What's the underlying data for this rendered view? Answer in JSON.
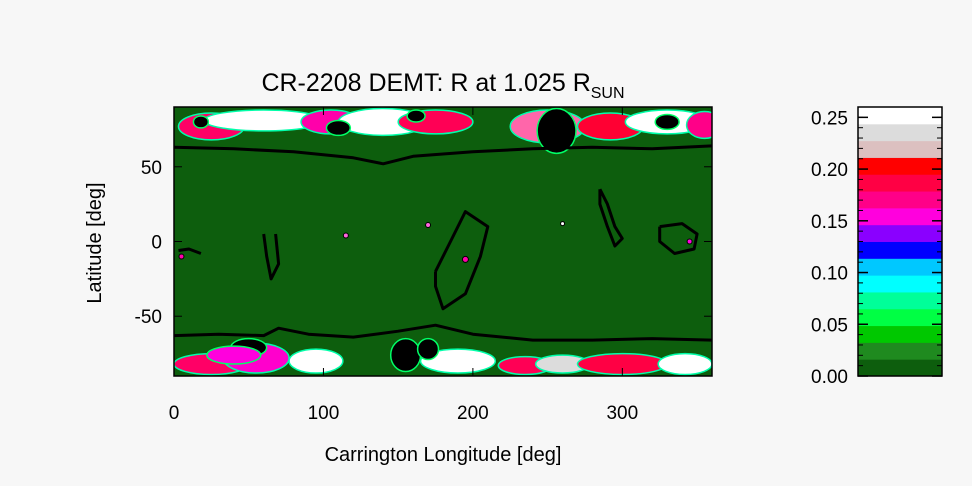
{
  "chart_data": {
    "type": "heatmap",
    "title": {
      "main": "CR-2208 DEMT: R at 1.025 R",
      "subscript": "SUN"
    },
    "xlabel": "Carrington Longitude [deg]",
    "ylabel": "Latitude [deg]",
    "xlim": [
      0,
      360
    ],
    "ylim": [
      -90,
      90
    ],
    "x_ticks": [
      0,
      100,
      200,
      300
    ],
    "y_ticks": [
      50,
      0,
      -50
    ],
    "x_tick_labels": [
      "0",
      "100",
      "200",
      "300"
    ],
    "y_tick_labels": [
      "50",
      "0",
      "-50"
    ],
    "background_value_color": "#0d5e0d",
    "boundary_color": "#000000",
    "colorbar": {
      "range": [
        0.0,
        0.26
      ],
      "ticks": [
        0.0,
        0.05,
        0.1,
        0.15,
        0.2,
        0.25
      ],
      "tick_labels": [
        "0.00",
        "0.05",
        "0.10",
        "0.15",
        "0.20",
        "0.25"
      ],
      "colors": [
        "#0d5e0d",
        "#1f8a1f",
        "#00c800",
        "#00ff44",
        "#00ff99",
        "#00ffff",
        "#00c8ff",
        "#0000ff",
        "#8a00ff",
        "#ff00dd",
        "#ff0088",
        "#ff0044",
        "#ff0000",
        "#dcc0c0",
        "#dcdcdc",
        "#ffffff"
      ]
    },
    "blobs": [
      {
        "lon": 25,
        "lat": 77,
        "rx": 22,
        "ry": 9,
        "fill": "#ff0066"
      },
      {
        "lon": 60,
        "lat": 81,
        "rx": 40,
        "ry": 7,
        "fill": "#ffffff"
      },
      {
        "lon": 105,
        "lat": 80,
        "rx": 20,
        "ry": 8,
        "fill": "#ff00aa"
      },
      {
        "lon": 140,
        "lat": 80,
        "rx": 30,
        "ry": 9,
        "fill": "#ffffff"
      },
      {
        "lon": 175,
        "lat": 80,
        "rx": 25,
        "ry": 8,
        "fill": "#ff0055"
      },
      {
        "lon": 250,
        "lat": 77,
        "rx": 25,
        "ry": 11,
        "fill": "#ff66aa"
      },
      {
        "lon": 292,
        "lat": 77,
        "rx": 22,
        "ry": 9,
        "fill": "#ff0033"
      },
      {
        "lon": 330,
        "lat": 80,
        "rx": 28,
        "ry": 8,
        "fill": "#ffffff"
      },
      {
        "lon": 355,
        "lat": 78,
        "rx": 12,
        "ry": 9,
        "fill": "#ff0088"
      },
      {
        "lon": 25,
        "lat": -82,
        "rx": 25,
        "ry": 7,
        "fill": "#ff0066"
      },
      {
        "lon": 55,
        "lat": -78,
        "rx": 22,
        "ry": 10,
        "fill": "#ff00cc"
      },
      {
        "lon": 95,
        "lat": -80,
        "rx": 18,
        "ry": 8,
        "fill": "#ffffff"
      },
      {
        "lon": 190,
        "lat": -80,
        "rx": 25,
        "ry": 8,
        "fill": "#ffffff"
      },
      {
        "lon": 235,
        "lat": -83,
        "rx": 18,
        "ry": 6,
        "fill": "#ff0055"
      },
      {
        "lon": 260,
        "lat": -82,
        "rx": 18,
        "ry": 6,
        "fill": "#dcdcdc"
      },
      {
        "lon": 300,
        "lat": -82,
        "rx": 30,
        "ry": 7,
        "fill": "#ff0044"
      },
      {
        "lon": 342,
        "lat": -82,
        "rx": 18,
        "ry": 7,
        "fill": "#ffffff"
      }
    ],
    "holes": [
      {
        "lon": 50,
        "lat": -71,
        "rx": 12,
        "ry": 6,
        "fill": "#000000"
      },
      {
        "lon": 40,
        "lat": -76,
        "rx": 18,
        "ry": 6,
        "fill": "#ff00dd"
      },
      {
        "lon": 155,
        "lat": -76,
        "rx": 10,
        "ry": 11,
        "fill": "#000000"
      },
      {
        "lon": 170,
        "lat": -72,
        "rx": 7,
        "ry": 7,
        "fill": "#000000"
      },
      {
        "lon": 256,
        "lat": 74,
        "rx": 13,
        "ry": 15,
        "fill": "#000000"
      },
      {
        "lon": 162,
        "lat": 84,
        "rx": 6,
        "ry": 4,
        "fill": "#000000"
      },
      {
        "lon": 110,
        "lat": 76,
        "rx": 8,
        "ry": 5,
        "fill": "#000000"
      },
      {
        "lon": 330,
        "lat": 80,
        "rx": 8,
        "ry": 5,
        "fill": "#000000"
      },
      {
        "lon": 18,
        "lat": 80,
        "rx": 5,
        "ry": 4,
        "fill": "#000000"
      }
    ],
    "spots": [
      {
        "lon": 115,
        "lat": 4,
        "r": 2.5,
        "fill": "#ff66dd"
      },
      {
        "lon": 170,
        "lat": 11,
        "r": 2.5,
        "fill": "#ff66dd"
      },
      {
        "lon": 195,
        "lat": -12,
        "r": 3,
        "fill": "#ff00aa"
      },
      {
        "lon": 5,
        "lat": -10,
        "r": 2.5,
        "fill": "#ff00aa"
      },
      {
        "lon": 345,
        "lat": 0,
        "r": 2.5,
        "fill": "#ff00dd"
      },
      {
        "lon": 260,
        "lat": 12,
        "r": 2,
        "fill": "#ffffff"
      }
    ],
    "boundaries": [
      [
        [
          0,
          63
        ],
        [
          40,
          62
        ],
        [
          80,
          60
        ],
        [
          120,
          56
        ],
        [
          140,
          52
        ],
        [
          160,
          57
        ],
        [
          200,
          60
        ],
        [
          240,
          62
        ],
        [
          280,
          63
        ],
        [
          320,
          62
        ],
        [
          360,
          64
        ]
      ],
      [
        [
          0,
          -63
        ],
        [
          30,
          -62
        ],
        [
          60,
          -63
        ],
        [
          70,
          -58
        ],
        [
          90,
          -62
        ],
        [
          120,
          -64
        ],
        [
          150,
          -60
        ],
        [
          175,
          -56
        ],
        [
          200,
          -62
        ],
        [
          240,
          -66
        ],
        [
          280,
          -66
        ],
        [
          320,
          -65
        ],
        [
          360,
          -66
        ]
      ],
      [
        [
          285,
          35
        ],
        [
          290,
          25
        ],
        [
          295,
          10
        ],
        [
          300,
          2
        ],
        [
          295,
          -3
        ],
        [
          290,
          10
        ],
        [
          285,
          25
        ],
        [
          285,
          35
        ]
      ],
      [
        [
          325,
          10
        ],
        [
          340,
          12
        ],
        [
          350,
          5
        ],
        [
          348,
          -5
        ],
        [
          335,
          -8
        ],
        [
          325,
          0
        ],
        [
          325,
          10
        ]
      ],
      [
        [
          175,
          -20
        ],
        [
          185,
          0
        ],
        [
          195,
          20
        ],
        [
          210,
          10
        ],
        [
          205,
          -10
        ],
        [
          195,
          -35
        ],
        [
          180,
          -45
        ],
        [
          175,
          -30
        ],
        [
          175,
          -20
        ]
      ],
      [
        [
          60,
          5
        ],
        [
          62,
          -10
        ],
        [
          65,
          -25
        ],
        [
          70,
          -15
        ],
        [
          68,
          5
        ]
      ],
      [
        [
          3,
          -6
        ],
        [
          10,
          -5
        ],
        [
          18,
          -8
        ]
      ]
    ]
  }
}
